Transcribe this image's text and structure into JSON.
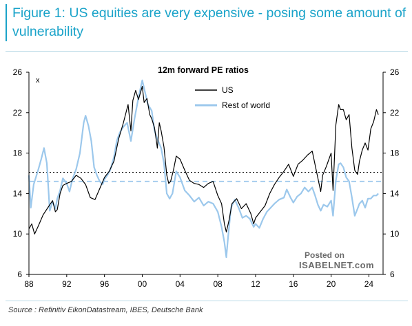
{
  "figure": {
    "title": "Figure 1: US equities are very expensive - posing some amount of vulnerability",
    "source": "Source : Refinitiv EikonDatastream, IBES, Deutsche Bank"
  },
  "watermark": {
    "line1": "Posted on",
    "line2": "ISABELNET.com"
  },
  "colors": {
    "us": "#000000",
    "row": "#9cc8ec",
    "title": "#1aa3c9"
  },
  "chart_data": {
    "type": "line",
    "title": "12m forward PE ratios",
    "xlabel": "",
    "ylabel": "x",
    "xlim": [
      1988,
      2025.5
    ],
    "ylim": [
      6,
      26
    ],
    "yticks": [
      6,
      10,
      14,
      18,
      22,
      26
    ],
    "xticks": [
      1988,
      1992,
      1996,
      2000,
      2004,
      2008,
      2012,
      2016,
      2020,
      2024
    ],
    "xticklabels": [
      "88",
      "92",
      "96",
      "00",
      "04",
      "08",
      "12",
      "16",
      "20",
      "24"
    ],
    "legend": {
      "placement": "top-center",
      "entries": [
        "US",
        "Rest of world"
      ]
    },
    "reference_lines": [
      {
        "series": "US",
        "style": "dotted",
        "value": 16.1
      },
      {
        "series": "Rest of world",
        "style": "dashed",
        "value": 15.2
      }
    ],
    "series": [
      {
        "name": "US",
        "color": "#000000",
        "points": [
          [
            1988.0,
            10.5
          ],
          [
            1988.3,
            11.0
          ],
          [
            1988.6,
            10.0
          ],
          [
            1989.0,
            10.8
          ],
          [
            1989.5,
            11.9
          ],
          [
            1990.0,
            12.6
          ],
          [
            1990.5,
            13.3
          ],
          [
            1990.8,
            12.2
          ],
          [
            1991.0,
            12.4
          ],
          [
            1991.3,
            14.0
          ],
          [
            1991.6,
            14.8
          ],
          [
            1992.0,
            15.0
          ],
          [
            1992.5,
            15.2
          ],
          [
            1993.0,
            15.8
          ],
          [
            1993.5,
            15.5
          ],
          [
            1994.0,
            14.9
          ],
          [
            1994.5,
            13.6
          ],
          [
            1995.0,
            13.4
          ],
          [
            1995.5,
            14.5
          ],
          [
            1996.0,
            15.6
          ],
          [
            1996.5,
            16.2
          ],
          [
            1997.0,
            17.2
          ],
          [
            1997.5,
            19.4
          ],
          [
            1998.0,
            21.0
          ],
          [
            1998.5,
            22.8
          ],
          [
            1998.8,
            20.2
          ],
          [
            1999.0,
            23.2
          ],
          [
            1999.3,
            24.2
          ],
          [
            1999.6,
            23.3
          ],
          [
            2000.0,
            24.6
          ],
          [
            2000.2,
            23.0
          ],
          [
            2000.5,
            23.4
          ],
          [
            2000.8,
            21.8
          ],
          [
            2001.0,
            21.4
          ],
          [
            2001.3,
            20.5
          ],
          [
            2001.6,
            18.5
          ],
          [
            2001.8,
            21.0
          ],
          [
            2002.0,
            20.2
          ],
          [
            2002.3,
            18.6
          ],
          [
            2002.6,
            15.8
          ],
          [
            2002.8,
            15.0
          ],
          [
            2003.0,
            15.2
          ],
          [
            2003.3,
            16.3
          ],
          [
            2003.6,
            17.7
          ],
          [
            2004.0,
            17.4
          ],
          [
            2004.5,
            16.3
          ],
          [
            2005.0,
            15.3
          ],
          [
            2005.5,
            15.0
          ],
          [
            2006.0,
            14.9
          ],
          [
            2006.5,
            14.6
          ],
          [
            2007.0,
            15.0
          ],
          [
            2007.5,
            15.2
          ],
          [
            2008.0,
            13.8
          ],
          [
            2008.4,
            13.0
          ],
          [
            2008.7,
            11.0
          ],
          [
            2008.9,
            10.2
          ],
          [
            2009.2,
            11.4
          ],
          [
            2009.5,
            13.0
          ],
          [
            2010.0,
            13.5
          ],
          [
            2010.5,
            12.5
          ],
          [
            2011.0,
            13.0
          ],
          [
            2011.5,
            12.0
          ],
          [
            2011.8,
            11.0
          ],
          [
            2012.0,
            11.6
          ],
          [
            2012.5,
            12.2
          ],
          [
            2013.0,
            12.8
          ],
          [
            2013.5,
            14.0
          ],
          [
            2014.0,
            14.9
          ],
          [
            2014.5,
            15.6
          ],
          [
            2015.0,
            16.2
          ],
          [
            2015.5,
            16.9
          ],
          [
            2016.0,
            15.7
          ],
          [
            2016.5,
            16.9
          ],
          [
            2017.0,
            17.3
          ],
          [
            2017.5,
            17.8
          ],
          [
            2018.0,
            18.2
          ],
          [
            2018.4,
            16.4
          ],
          [
            2018.9,
            14.2
          ],
          [
            2019.1,
            15.8
          ],
          [
            2019.5,
            16.7
          ],
          [
            2020.0,
            18.0
          ],
          [
            2020.2,
            14.3
          ],
          [
            2020.5,
            20.8
          ],
          [
            2020.8,
            22.8
          ],
          [
            2021.0,
            22.3
          ],
          [
            2021.3,
            22.3
          ],
          [
            2021.6,
            21.3
          ],
          [
            2021.9,
            21.8
          ],
          [
            2022.2,
            18.5
          ],
          [
            2022.5,
            16.3
          ],
          [
            2022.8,
            15.9
          ],
          [
            2023.0,
            17.2
          ],
          [
            2023.3,
            18.3
          ],
          [
            2023.6,
            19.0
          ],
          [
            2023.9,
            18.3
          ],
          [
            2024.2,
            20.4
          ],
          [
            2024.5,
            21.1
          ],
          [
            2024.8,
            22.3
          ],
          [
            2025.0,
            21.8
          ]
        ]
      },
      {
        "name": "Rest of world",
        "color": "#9cc8ec",
        "points": [
          [
            1988.0,
            15.8
          ],
          [
            1988.2,
            12.6
          ],
          [
            1988.5,
            14.9
          ],
          [
            1988.8,
            15.8
          ],
          [
            1989.0,
            16.4
          ],
          [
            1989.3,
            17.4
          ],
          [
            1989.6,
            18.5
          ],
          [
            1989.9,
            17.0
          ],
          [
            1990.2,
            12.3
          ],
          [
            1990.5,
            13.2
          ],
          [
            1990.8,
            12.5
          ],
          [
            1991.0,
            13.5
          ],
          [
            1991.3,
            14.3
          ],
          [
            1991.6,
            15.5
          ],
          [
            1992.0,
            15.0
          ],
          [
            1992.3,
            14.2
          ],
          [
            1992.6,
            15.4
          ],
          [
            1993.0,
            16.4
          ],
          [
            1993.4,
            18.0
          ],
          [
            1993.8,
            21.0
          ],
          [
            1994.0,
            21.7
          ],
          [
            1994.3,
            20.7
          ],
          [
            1994.6,
            19.2
          ],
          [
            1994.9,
            16.6
          ],
          [
            1995.2,
            15.8
          ],
          [
            1995.5,
            15.2
          ],
          [
            1995.8,
            14.9
          ],
          [
            1996.0,
            15.4
          ],
          [
            1996.3,
            15.8
          ],
          [
            1996.6,
            16.3
          ],
          [
            1997.0,
            17.6
          ],
          [
            1997.3,
            19.2
          ],
          [
            1997.6,
            20.0
          ],
          [
            1998.0,
            20.6
          ],
          [
            1998.4,
            21.0
          ],
          [
            1998.8,
            19.2
          ],
          [
            1999.2,
            21.5
          ],
          [
            1999.6,
            23.5
          ],
          [
            2000.0,
            25.2
          ],
          [
            2000.3,
            24.0
          ],
          [
            2000.6,
            22.8
          ],
          [
            2001.0,
            22.2
          ],
          [
            2001.3,
            20.2
          ],
          [
            2001.6,
            19.4
          ],
          [
            2002.0,
            18.5
          ],
          [
            2002.3,
            17.0
          ],
          [
            2002.6,
            14.0
          ],
          [
            2002.9,
            13.5
          ],
          [
            2003.2,
            14.0
          ],
          [
            2003.6,
            16.2
          ],
          [
            2004.0,
            15.6
          ],
          [
            2004.5,
            14.3
          ],
          [
            2005.0,
            13.8
          ],
          [
            2005.5,
            13.2
          ],
          [
            2006.0,
            13.6
          ],
          [
            2006.5,
            12.8
          ],
          [
            2007.0,
            13.2
          ],
          [
            2007.5,
            13.0
          ],
          [
            2008.0,
            12.2
          ],
          [
            2008.4,
            10.7
          ],
          [
            2008.7,
            9.2
          ],
          [
            2008.9,
            7.7
          ],
          [
            2009.1,
            9.8
          ],
          [
            2009.4,
            12.6
          ],
          [
            2009.8,
            13.4
          ],
          [
            2010.2,
            12.6
          ],
          [
            2010.6,
            11.6
          ],
          [
            2011.0,
            11.8
          ],
          [
            2011.4,
            11.5
          ],
          [
            2011.8,
            10.7
          ],
          [
            2012.0,
            11.0
          ],
          [
            2012.4,
            10.6
          ],
          [
            2012.8,
            11.5
          ],
          [
            2013.2,
            12.2
          ],
          [
            2013.6,
            12.6
          ],
          [
            2014.0,
            13.0
          ],
          [
            2014.5,
            13.4
          ],
          [
            2015.0,
            13.6
          ],
          [
            2015.3,
            14.4
          ],
          [
            2015.7,
            13.6
          ],
          [
            2016.0,
            13.1
          ],
          [
            2016.4,
            13.7
          ],
          [
            2016.8,
            14.0
          ],
          [
            2017.2,
            14.6
          ],
          [
            2017.6,
            14.2
          ],
          [
            2018.0,
            14.6
          ],
          [
            2018.3,
            13.8
          ],
          [
            2018.6,
            12.9
          ],
          [
            2018.9,
            12.3
          ],
          [
            2019.2,
            12.9
          ],
          [
            2019.6,
            12.7
          ],
          [
            2020.0,
            13.3
          ],
          [
            2020.2,
            11.8
          ],
          [
            2020.5,
            15.3
          ],
          [
            2020.8,
            16.9
          ],
          [
            2021.0,
            17.0
          ],
          [
            2021.3,
            16.6
          ],
          [
            2021.6,
            15.6
          ],
          [
            2021.9,
            15.2
          ],
          [
            2022.2,
            13.6
          ],
          [
            2022.5,
            11.8
          ],
          [
            2022.8,
            12.5
          ],
          [
            2023.0,
            13.0
          ],
          [
            2023.3,
            13.3
          ],
          [
            2023.6,
            12.6
          ],
          [
            2023.9,
            13.5
          ],
          [
            2024.2,
            13.5
          ],
          [
            2024.5,
            13.8
          ],
          [
            2024.8,
            13.8
          ],
          [
            2025.0,
            14.0
          ]
        ]
      }
    ]
  }
}
